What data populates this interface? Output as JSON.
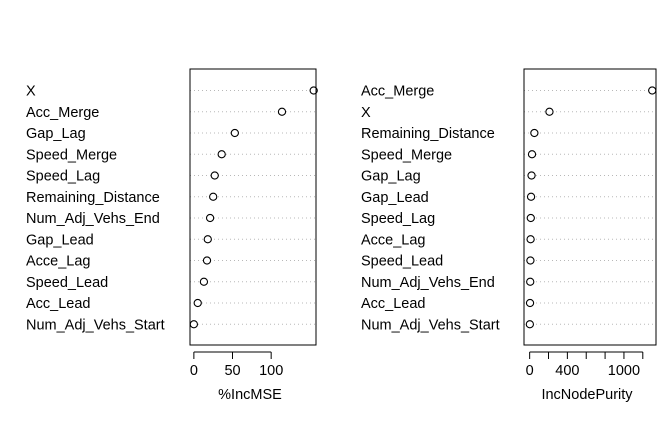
{
  "chart_data": [
    {
      "type": "scatter",
      "style": "dotchart",
      "xlabel": "%IncMSE",
      "ticks": [
        0,
        50,
        100
      ],
      "xlim": [
        -5,
        158
      ],
      "grid": "dotted horizontal",
      "points": [
        {
          "label": "X",
          "value": 155
        },
        {
          "label": "Acc_Merge",
          "value": 114
        },
        {
          "label": "Gap_Lag",
          "value": 53
        },
        {
          "label": "Speed_Merge",
          "value": 36
        },
        {
          "label": "Speed_Lag",
          "value": 27
        },
        {
          "label": "Remaining_Distance",
          "value": 25
        },
        {
          "label": "Num_Adj_Vehs_End",
          "value": 21
        },
        {
          "label": "Gap_Lead",
          "value": 18
        },
        {
          "label": "Acce_Lag",
          "value": 17
        },
        {
          "label": "Speed_Lead",
          "value": 13
        },
        {
          "label": "Acc_Lead",
          "value": 5
        },
        {
          "label": "Num_Adj_Vehs_Start",
          "value": 0
        }
      ]
    },
    {
      "type": "scatter",
      "style": "dotchart",
      "xlabel": "IncNodePurity",
      "ticks": [
        0,
        200,
        400,
        600,
        800,
        1000,
        1200
      ],
      "tick_labels": [
        "0",
        "",
        "400",
        "",
        "",
        "1000",
        ""
      ],
      "xlim": [
        -60,
        1340
      ],
      "grid": "dotted horizontal",
      "points": [
        {
          "label": "Acc_Merge",
          "value": 1300
        },
        {
          "label": "X",
          "value": 210
        },
        {
          "label": "Remaining_Distance",
          "value": 50
        },
        {
          "label": "Speed_Merge",
          "value": 25
        },
        {
          "label": "Gap_Lag",
          "value": 20
        },
        {
          "label": "Gap_Lead",
          "value": 15
        },
        {
          "label": "Speed_Lag",
          "value": 12
        },
        {
          "label": "Acce_Lag",
          "value": 10
        },
        {
          "label": "Speed_Lead",
          "value": 8
        },
        {
          "label": "Num_Adj_Vehs_End",
          "value": 6
        },
        {
          "label": "Acc_Lead",
          "value": 4
        },
        {
          "label": "Num_Adj_Vehs_Start",
          "value": 2
        }
      ]
    }
  ]
}
